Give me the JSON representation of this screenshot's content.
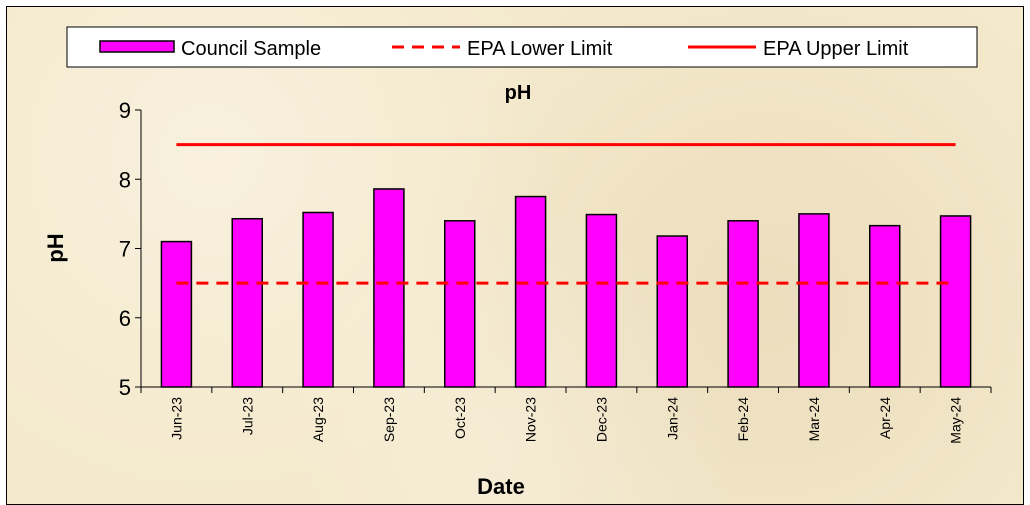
{
  "chart_data": {
    "type": "bar",
    "title": "pH",
    "xlabel": "Date",
    "ylabel": "pH",
    "ylim": [
      5,
      9
    ],
    "yticks": [
      "5",
      "6",
      "7",
      "8",
      "9"
    ],
    "categories": [
      "Jun-23",
      "Jul-23",
      "Aug-23",
      "Sep-23",
      "Oct-23",
      "Nov-23",
      "Dec-23",
      "Jan-24",
      "Feb-24",
      "Mar-24",
      "Apr-24",
      "May-24"
    ],
    "series": [
      {
        "name": "Council Sample",
        "type": "bar",
        "color": "#ff00ff",
        "values": [
          7.1,
          7.43,
          7.52,
          7.86,
          7.4,
          7.75,
          7.49,
          7.18,
          7.4,
          7.5,
          7.33,
          7.47
        ]
      },
      {
        "name": "EPA Lower Limit",
        "type": "line",
        "style": "dashed",
        "color": "#ff0000",
        "values": [
          6.5,
          6.5,
          6.5,
          6.5,
          6.5,
          6.5,
          6.5,
          6.5,
          6.5,
          6.5,
          6.5,
          6.5
        ]
      },
      {
        "name": "EPA Upper Limit",
        "type": "line",
        "style": "solid",
        "color": "#ff0000",
        "values": [
          8.5,
          8.5,
          8.5,
          8.5,
          8.5,
          8.5,
          8.5,
          8.5,
          8.5,
          8.5,
          8.5,
          8.5
        ]
      }
    ],
    "legend": "top",
    "grid": false
  }
}
